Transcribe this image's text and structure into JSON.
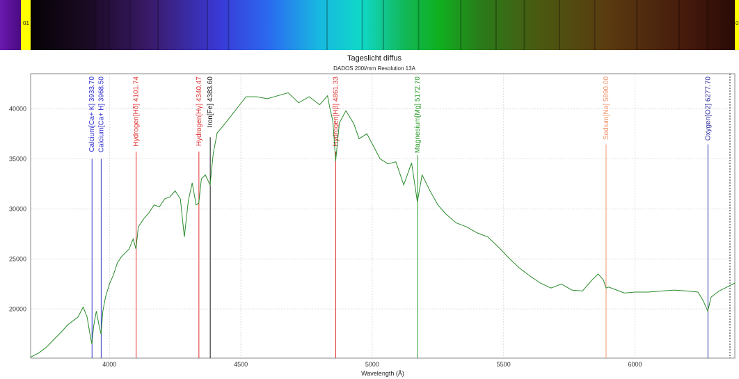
{
  "spectrum_strip": {
    "left_label": "01",
    "right_label": "0"
  },
  "chart_data": {
    "type": "line",
    "title": "Tageslicht diffus",
    "subtitle": "DADOS 200l/mm Resolution 13A",
    "xlabel": "Wavelength (Å)",
    "ylabel": "",
    "xlim": [
      3700,
      6380
    ],
    "ylim": [
      15100,
      43500
    ],
    "x_ticks": [
      4000,
      4500,
      5000,
      5500,
      6000
    ],
    "y_ticks": [
      20000,
      25000,
      30000,
      35000,
      40000
    ],
    "grid": true,
    "series": [
      {
        "color": "#2a8a2a",
        "x": [
          3700,
          3730,
          3760,
          3790,
          3820,
          3840,
          3860,
          3880,
          3900,
          3915,
          3925,
          3933,
          3940,
          3950,
          3960,
          3968,
          3975,
          3985,
          4000,
          4015,
          4030,
          4045,
          4060,
          4075,
          4090,
          4101,
          4110,
          4130,
          4150,
          4170,
          4190,
          4210,
          4230,
          4250,
          4270,
          4285,
          4300,
          4315,
          4330,
          4340,
          4350,
          4365,
          4383,
          4395,
          4410,
          4430,
          4460,
          4490,
          4520,
          4560,
          4600,
          4640,
          4680,
          4720,
          4760,
          4800,
          4830,
          4840,
          4850,
          4861,
          4875,
          4900,
          4930,
          4950,
          4980,
          5010,
          5030,
          5060,
          5090,
          5120,
          5150,
          5172,
          5190,
          5220,
          5250,
          5280,
          5320,
          5360,
          5400,
          5440,
          5480,
          5520,
          5560,
          5600,
          5640,
          5680,
          5720,
          5760,
          5800,
          5840,
          5860,
          5880,
          5890,
          5900,
          5930,
          5960,
          6000,
          6050,
          6100,
          6150,
          6200,
          6240,
          6260,
          6277,
          6290,
          6320,
          6350,
          6380
        ],
        "y": [
          15200,
          15600,
          16200,
          17000,
          17800,
          18400,
          18800,
          19200,
          20200,
          19200,
          17600,
          16500,
          18300,
          19800,
          18400,
          17500,
          19800,
          21200,
          22500,
          23400,
          24600,
          25200,
          25600,
          26000,
          27000,
          26000,
          28200,
          29000,
          29600,
          30400,
          30200,
          31000,
          31200,
          31800,
          31000,
          27200,
          30800,
          32600,
          30400,
          30600,
          33000,
          33400,
          32400,
          35500,
          37600,
          38200,
          39200,
          40200,
          41200,
          41200,
          41000,
          41300,
          41600,
          40600,
          41200,
          40400,
          41300,
          39900,
          38800,
          34800,
          38600,
          39800,
          38500,
          37000,
          37500,
          36000,
          35000,
          34500,
          34700,
          32400,
          34600,
          30700,
          33400,
          31800,
          30400,
          29500,
          28600,
          28200,
          27600,
          27200,
          26200,
          25100,
          24100,
          23300,
          22600,
          22100,
          22500,
          21900,
          21800,
          23000,
          23500,
          22900,
          22100,
          22200,
          21900,
          21600,
          21700,
          21700,
          21800,
          21900,
          21800,
          21700,
          20800,
          19800,
          21200,
          21800,
          22200,
          22600
        ]
      }
    ],
    "markers": [
      {
        "label": "Calcium[Ca+ K] 3933.70",
        "x": 3933.7,
        "color": "#2f2fd0"
      },
      {
        "label": "Calcium[Ca+ H] 3968.50",
        "x": 3968.5,
        "color": "#2f2fd0"
      },
      {
        "label": "Hydrogen[Hδ] 4101.74",
        "x": 4101.74,
        "color": "#e03030"
      },
      {
        "label": "Hydrogen[Hγ] 4340.47",
        "x": 4340.47,
        "color": "#e03030"
      },
      {
        "label": "Iron[Fe] 4383.60",
        "x": 4383.6,
        "color": "#111111"
      },
      {
        "label": "Hydrogen[Hβ] 4861.33",
        "x": 4861.33,
        "color": "#e03030"
      },
      {
        "label": "Magnesium[Mg] 5172.70",
        "x": 5172.7,
        "color": "#2a9a2a"
      },
      {
        "label": "Sodium[Na] 5890.00",
        "x": 5890.0,
        "color": "#f0906a"
      },
      {
        "label": "Oxygen[O2] 6277.70",
        "x": 6277.7,
        "color": "#2f2fa0"
      }
    ]
  }
}
